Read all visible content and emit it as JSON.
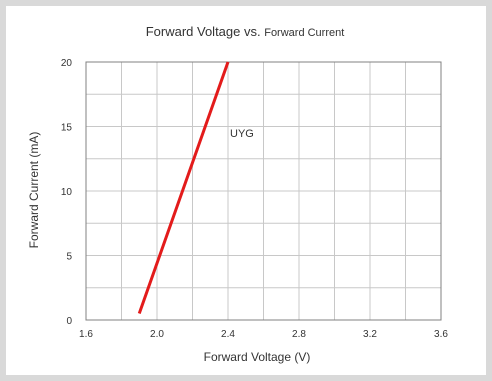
{
  "chart_data": {
    "type": "line",
    "title_main": "Forward Voltage vs.",
    "title_tail": "Forward Current",
    "xlabel": "Forward Voltage (V)",
    "ylabel": "Forward Current (mA)",
    "xlim": [
      1.6,
      3.6
    ],
    "ylim": [
      0,
      20
    ],
    "x_ticks": [
      "1.6",
      "2.0",
      "2.4",
      "2.8",
      "3.2",
      "3.6"
    ],
    "x_tick_values": [
      1.6,
      2.0,
      2.4,
      2.8,
      3.2,
      3.6
    ],
    "y_ticks": [
      "0",
      "5",
      "10",
      "15",
      "20"
    ],
    "y_tick_values": [
      0,
      5,
      10,
      15,
      20
    ],
    "x_grid_values": [
      1.6,
      1.8,
      2.0,
      2.2,
      2.4,
      2.6,
      2.8,
      3.0,
      3.2,
      3.4,
      3.6
    ],
    "y_grid_values": [
      0,
      2.5,
      5,
      7.5,
      10,
      12.5,
      15,
      17.5,
      20
    ],
    "grid": true,
    "series": [
      {
        "name": "UYG",
        "color": "#e31b1b",
        "x": [
          1.9,
          2.4
        ],
        "y": [
          0.5,
          20
        ]
      }
    ],
    "annotation": {
      "text": "UYG",
      "x": 2.4,
      "y": 14.5
    }
  }
}
